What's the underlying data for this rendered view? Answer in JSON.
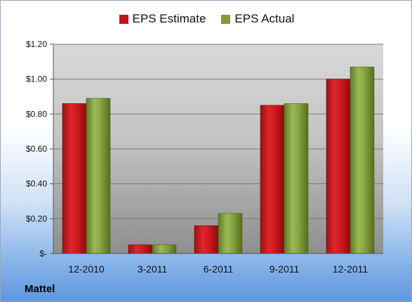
{
  "company": "Mattel",
  "colors": {
    "estimate": "#c0161b",
    "actual": "#7f9c3a"
  },
  "chart_data": {
    "type": "bar",
    "categories": [
      "12-2010",
      "3-2011",
      "6-2011",
      "9-2011",
      "12-2011"
    ],
    "series": [
      {
        "name": "EPS Estimate",
        "values": [
          0.86,
          0.05,
          0.16,
          0.85,
          1.0
        ]
      },
      {
        "name": "EPS Actual",
        "values": [
          0.89,
          0.05,
          0.23,
          0.86,
          1.07
        ]
      }
    ],
    "ylim": [
      0,
      1.2
    ],
    "yticks": [
      0,
      0.2,
      0.4,
      0.6,
      0.8,
      1.0,
      1.2
    ],
    "ytick_labels": [
      "$-",
      "$0.20",
      "$0.40",
      "$0.60",
      "$0.80",
      "$1.00",
      "$1.20"
    ],
    "grid": true,
    "legend_position": "top"
  }
}
